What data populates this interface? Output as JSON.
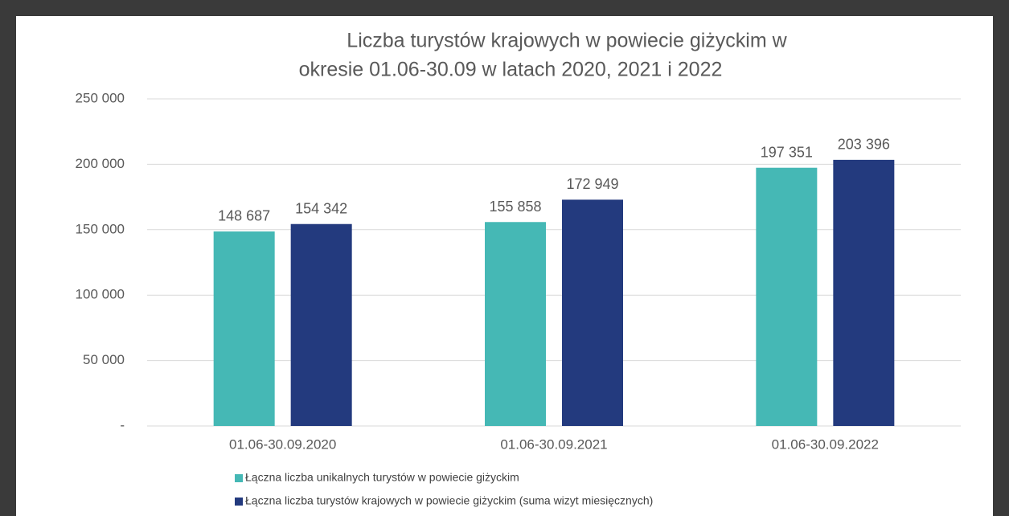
{
  "chart_data": {
    "type": "bar",
    "title": [
      "Liczba turystów krajowych w powiecie giżyckim w",
      "okresie 01.06-30.09 w latach 2020, 2021 i 2022"
    ],
    "categories": [
      "01.06-30.09.2020",
      "01.06-30.09.2021",
      "01.06-30.09.2022"
    ],
    "series": [
      {
        "name": "Łączna liczba unikalnych turystów w powiecie giżyckim",
        "color": "#45b8b5",
        "values": [
          148687,
          155858,
          197351
        ],
        "value_labels": [
          "148 687",
          "155 858",
          "197 351"
        ]
      },
      {
        "name": "Łączna liczba turystów krajowych w powiecie giżyckim (suma wizyt miesięcznych)",
        "color": "#233a7e",
        "values": [
          154342,
          172949,
          203396
        ],
        "value_labels": [
          "154 342",
          "172 949",
          "203 396"
        ]
      }
    ],
    "ylim": [
      0,
      250000
    ],
    "yticks": [
      {
        "value": 0,
        "label": "-"
      },
      {
        "value": 50000,
        "label": "50 000"
      },
      {
        "value": 100000,
        "label": "100 000"
      },
      {
        "value": 150000,
        "label": "150 000"
      },
      {
        "value": 200000,
        "label": "200 000"
      },
      {
        "value": 250000,
        "label": "250 000"
      }
    ],
    "grid": true
  }
}
